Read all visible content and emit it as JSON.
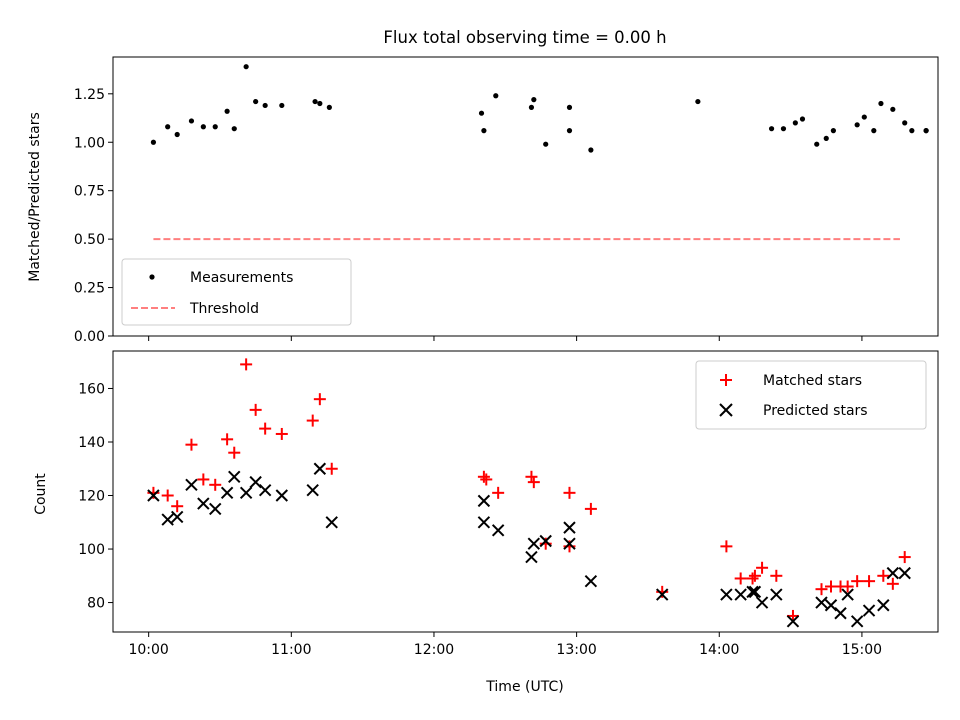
{
  "chart_data": [
    {
      "type": "scatter",
      "title": "Flux total observing time = 0.00 h",
      "ylabel": "Matched/Predicted stars",
      "xlabel": "",
      "ylim": [
        0,
        1.44
      ],
      "yticks": [
        0.0,
        0.25,
        0.5,
        0.75,
        1.0,
        1.25
      ],
      "ytick_labels": [
        "0.00",
        "0.25",
        "0.50",
        "0.75",
        "1.00",
        "1.25"
      ],
      "xlim": [
        "09:45",
        "15:32"
      ],
      "xticks": [
        "10:00",
        "11:00",
        "12:00",
        "13:00",
        "14:00",
        "15:00"
      ],
      "legend_position": "lower-left",
      "series": [
        {
          "name": "Measurements",
          "marker": "dot",
          "color": "#000000",
          "x": [
            "10:02",
            "10:08",
            "10:12",
            "10:18",
            "10:23",
            "10:28",
            "10:33",
            "10:36",
            "10:41",
            "10:45",
            "10:49",
            "10:56",
            "11:10",
            "11:12",
            "11:16",
            "12:20",
            "12:21",
            "12:26",
            "12:41",
            "12:42",
            "12:47",
            "12:57",
            "12:57",
            "13:06",
            "13:51",
            "14:22",
            "14:27",
            "14:32",
            "14:35",
            "14:41",
            "14:45",
            "14:48",
            "14:58",
            "15:01",
            "15:05",
            "15:08",
            "15:13",
            "15:18",
            "15:21",
            "15:27",
            "15:27"
          ],
          "y": [
            1.0,
            1.08,
            1.04,
            1.11,
            1.08,
            1.08,
            1.16,
            1.07,
            1.39,
            1.21,
            1.19,
            1.19,
            1.21,
            1.2,
            1.18,
            1.15,
            1.06,
            1.24,
            1.18,
            1.22,
            0.99,
            1.18,
            1.06,
            0.96,
            1.21,
            1.07,
            1.07,
            1.1,
            1.12,
            0.99,
            1.02,
            1.06,
            1.09,
            1.13,
            1.06,
            1.2,
            1.17,
            1.1,
            1.06,
            1.06,
            1.06
          ]
        },
        {
          "name": "Threshold",
          "style": "dashed",
          "color": "#ff7f7f",
          "x": [
            "10:02",
            "15:16"
          ],
          "y": [
            0.5,
            0.5
          ]
        }
      ]
    },
    {
      "type": "scatter",
      "title": "",
      "ylabel": "Count",
      "xlabel": "Time (UTC)",
      "ylim": [
        69,
        174
      ],
      "yticks": [
        80,
        100,
        120,
        140,
        160
      ],
      "ytick_labels": [
        "80",
        "100",
        "120",
        "140",
        "160"
      ],
      "xlim": [
        "09:45",
        "15:32"
      ],
      "xticks": [
        "10:00",
        "11:00",
        "12:00",
        "13:00",
        "14:00",
        "15:00"
      ],
      "xtick_labels": [
        "10:00",
        "11:00",
        "12:00",
        "13:00",
        "14:00",
        "15:00"
      ],
      "legend_position": "top-right",
      "series": [
        {
          "name": "Matched stars",
          "marker": "plus",
          "color": "#ff0000",
          "x": [
            "10:02",
            "10:08",
            "10:12",
            "10:18",
            "10:23",
            "10:28",
            "10:33",
            "10:36",
            "10:41",
            "10:45",
            "10:49",
            "10:56",
            "11:09",
            "11:12",
            "11:17",
            "12:21",
            "12:22",
            "12:27",
            "12:41",
            "12:42",
            "12:47",
            "12:57",
            "12:57",
            "13:06",
            "13:36",
            "14:03",
            "14:09",
            "14:14",
            "14:15",
            "14:18",
            "14:24",
            "14:31",
            "14:43",
            "14:47",
            "14:51",
            "14:54",
            "14:58",
            "15:03",
            "15:09",
            "15:13",
            "15:18"
          ],
          "y": [
            121,
            120,
            116,
            139,
            126,
            124,
            141,
            136,
            169,
            152,
            145,
            143,
            148,
            156,
            130,
            127,
            126,
            121,
            127,
            125,
            102,
            121,
            101,
            115,
            84,
            101,
            89,
            89,
            90,
            93,
            90,
            75,
            85,
            86,
            86,
            86,
            88,
            88,
            90,
            87,
            97
          ]
        },
        {
          "name": "Predicted stars",
          "marker": "x",
          "color": "#000000",
          "x": [
            "10:02",
            "10:08",
            "10:12",
            "10:18",
            "10:23",
            "10:28",
            "10:33",
            "10:36",
            "10:41",
            "10:45",
            "10:49",
            "10:56",
            "11:09",
            "11:12",
            "11:17",
            "12:21",
            "12:21",
            "12:27",
            "12:41",
            "12:42",
            "12:47",
            "12:57",
            "12:57",
            "13:06",
            "13:36",
            "14:03",
            "14:09",
            "14:14",
            "14:15",
            "14:18",
            "14:24",
            "14:31",
            "14:43",
            "14:47",
            "14:51",
            "14:54",
            "14:58",
            "15:03",
            "15:09",
            "15:13",
            "15:18"
          ],
          "y": [
            120,
            111,
            112,
            124,
            117,
            115,
            121,
            127,
            121,
            125,
            122,
            120,
            122,
            130,
            110,
            110,
            118,
            107,
            97,
            102,
            103,
            102,
            108,
            88,
            83,
            83,
            83,
            84,
            84,
            80,
            83,
            73,
            80,
            79,
            76,
            83,
            73,
            77,
            79,
            91,
            91
          ]
        }
      ]
    }
  ]
}
